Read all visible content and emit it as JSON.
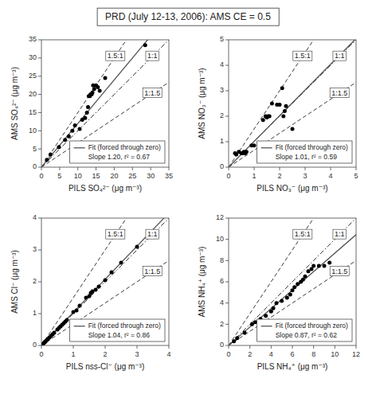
{
  "chart_data": [
    {
      "type": "scatter",
      "title": "PRD (July 12-13, 2006): AMS CE = 0.5",
      "xlabel": "PILS SO₄²⁻ (μg m⁻³)",
      "ylabel": "AMS SO₄²⁻ (μg m⁻³)",
      "xlim": [
        0,
        35
      ],
      "ylim": [
        0,
        35
      ],
      "xticks": [
        0,
        5,
        10,
        15,
        20,
        25,
        30,
        35
      ],
      "yticks": [
        0,
        5,
        10,
        15,
        20,
        25,
        30,
        35
      ],
      "grid": false,
      "legend": "lower right",
      "series": [
        {
          "color": "#000000",
          "marker": "circle",
          "x": [
            1.5,
            2.5,
            4.8,
            6.5,
            7.5,
            8.5,
            9.2,
            10.5,
            11.2,
            12.0,
            12.5,
            12.8,
            13.0,
            13.3,
            13.5,
            13.8,
            14.0,
            14.2,
            14.5,
            15.0,
            15.5,
            16.0,
            17.5,
            28.5
          ],
          "values": [
            2.0,
            3.5,
            5.5,
            7.5,
            8.5,
            10.0,
            11.5,
            10.5,
            13.0,
            13.5,
            15.0,
            16.5,
            19.5,
            19.5,
            20.0,
            20.0,
            20.5,
            22.5,
            21.5,
            22.5,
            22.0,
            21.0,
            24.5,
            33.5
          ]
        }
      ],
      "ref_lines": [
        {
          "label": "1.5:1",
          "slope": 1.5,
          "line_style": "dashed"
        },
        {
          "label": "1:1",
          "slope": 1.0,
          "line_style": "dashdot"
        },
        {
          "label": "1:1.5",
          "slope": 0.6666666666666666,
          "line_style": "dashed"
        }
      ],
      "fit": {
        "name": "Fit (forced through zero)",
        "slope": 1.2,
        "label": "Slope 1.20, r² = 0.67",
        "color": "#555555",
        "line_style": "solid"
      }
    },
    {
      "type": "scatter",
      "xlabel": "PILS NO₃⁻ (μg m⁻³)",
      "ylabel": "AMS NO₃⁻ (μg m⁻³)",
      "xlim": [
        0,
        5
      ],
      "ylim": [
        0,
        5
      ],
      "xticks": [
        0,
        1,
        2,
        3,
        4,
        5
      ],
      "yticks": [
        0,
        1,
        2,
        3,
        4,
        5
      ],
      "grid": false,
      "legend": "lower right",
      "series": [
        {
          "color": "#000000",
          "marker": "circle",
          "x": [
            0.25,
            0.3,
            0.4,
            0.5,
            0.55,
            0.6,
            0.65,
            0.7,
            0.9,
            1.0,
            1.3,
            1.35,
            1.45,
            1.5,
            1.55,
            1.6,
            1.7,
            1.9,
            2.0,
            2.1,
            2.15,
            2.2,
            2.25,
            2.5
          ],
          "values": [
            0.55,
            0.5,
            0.6,
            0.55,
            0.55,
            0.6,
            0.55,
            0.6,
            0.85,
            0.85,
            0.9,
            1.85,
            2.0,
            1.95,
            2.0,
            2.0,
            2.5,
            2.45,
            2.45,
            3.1,
            2.0,
            2.2,
            2.4,
            1.5
          ]
        }
      ],
      "ref_lines": [
        {
          "label": "1.5:1",
          "slope": 1.5,
          "line_style": "dashed"
        },
        {
          "label": "1:1",
          "slope": 1.0,
          "line_style": "dashdot"
        },
        {
          "label": "1:1.5",
          "slope": 0.6666666666666666,
          "line_style": "dashed"
        }
      ],
      "fit": {
        "name": "Fit (forced through zero)",
        "slope": 1.01,
        "label": "Slope 1.01, r² = 0.59",
        "color": "#555555",
        "line_style": "solid"
      }
    },
    {
      "type": "scatter",
      "xlabel": "PILS nss-Cl⁻ (μg m⁻³)",
      "ylabel": "AMS Cl⁻ (μg m⁻³)",
      "xlim": [
        0,
        4
      ],
      "ylim": [
        0,
        4
      ],
      "xticks": [
        0,
        1,
        2,
        3,
        4
      ],
      "yticks": [
        0,
        1,
        2,
        3,
        4
      ],
      "grid": false,
      "legend": "lower right",
      "series": [
        {
          "color": "#000000",
          "marker": "circle",
          "x": [
            0.05,
            0.08,
            0.1,
            0.12,
            0.15,
            0.18,
            0.2,
            0.25,
            0.3,
            0.35,
            0.4,
            0.5,
            0.55,
            0.6,
            0.65,
            0.7,
            0.75,
            0.8,
            1.0,
            1.1,
            1.2,
            1.4,
            1.5,
            1.55,
            1.6,
            1.7,
            1.8,
            2.0,
            2.2,
            2.5,
            3.0
          ],
          "values": [
            0.05,
            0.08,
            0.1,
            0.12,
            0.15,
            0.18,
            0.2,
            0.25,
            0.3,
            0.35,
            0.4,
            0.5,
            0.55,
            0.6,
            0.65,
            0.7,
            0.75,
            0.8,
            1.05,
            1.1,
            1.25,
            1.5,
            1.55,
            1.65,
            1.7,
            1.75,
            1.85,
            2.05,
            2.3,
            2.6,
            3.1
          ]
        }
      ],
      "ref_lines": [
        {
          "label": "1.5:1",
          "slope": 1.5,
          "line_style": "dashed"
        },
        {
          "label": "1:1",
          "slope": 1.0,
          "line_style": "dashdot"
        },
        {
          "label": "1:1.5",
          "slope": 0.6666666666666666,
          "line_style": "dashed"
        }
      ],
      "fit": {
        "name": "Fit (forced through zero)",
        "slope": 1.04,
        "label": "Slope 1.04, r² = 0.86",
        "color": "#555555",
        "line_style": "solid"
      }
    },
    {
      "type": "scatter",
      "xlabel": "PILS NH₄⁺ (μg m⁻³)",
      "ylabel": "AMS NH₄⁺ (μg m⁻³)",
      "xlim": [
        0,
        12
      ],
      "ylim": [
        0,
        12
      ],
      "xticks": [
        0,
        2,
        4,
        6,
        8,
        10,
        12
      ],
      "yticks": [
        0,
        2,
        4,
        6,
        8,
        10,
        12
      ],
      "grid": false,
      "legend": "lower right",
      "series": [
        {
          "color": "#000000",
          "marker": "circle",
          "x": [
            0.5,
            0.8,
            1.5,
            2.2,
            2.5,
            3.0,
            3.5,
            4.0,
            4.2,
            4.5,
            5.0,
            5.5,
            5.8,
            6.0,
            6.2,
            6.5,
            6.8,
            7.0,
            7.2,
            7.5,
            7.8,
            8.0,
            8.5,
            9.0,
            9.5
          ],
          "values": [
            0.4,
            0.7,
            1.2,
            2.0,
            2.2,
            2.5,
            2.8,
            3.2,
            3.5,
            4.0,
            4.2,
            4.5,
            4.8,
            5.2,
            5.5,
            5.8,
            6.0,
            6.2,
            6.5,
            7.0,
            7.2,
            7.5,
            7.5,
            7.5,
            7.8
          ]
        }
      ],
      "ref_lines": [
        {
          "label": "1.5:1",
          "slope": 1.5,
          "line_style": "dashed"
        },
        {
          "label": "1:1",
          "slope": 1.0,
          "line_style": "dashdot"
        },
        {
          "label": "1:1.5",
          "slope": 0.6666666666666666,
          "line_style": "dashed"
        }
      ],
      "fit": {
        "name": "Fit (forced through zero)",
        "slope": 0.87,
        "label": "Slope 0.87, r² = 0.62",
        "color": "#555555",
        "line_style": "solid"
      }
    }
  ]
}
